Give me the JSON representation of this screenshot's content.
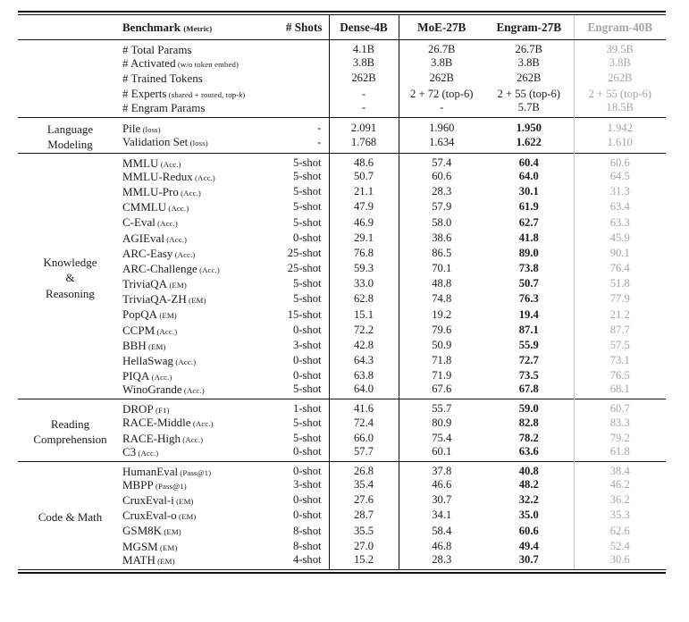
{
  "colors": {
    "text": "#1c1c1c",
    "muted": "#a5a5a5",
    "rule": "#111111",
    "rule_gray": "#c6c6c6"
  },
  "header": {
    "benchmark": "Benchmark",
    "benchmark_metric": "(Metric)",
    "shots": "# Shots",
    "models": [
      "Dense-4B",
      "MoE-27B",
      "Engram-27B",
      "Engram-40B"
    ]
  },
  "sections": [
    {
      "name": "model-config",
      "group_label": [],
      "engram27_bold": false,
      "rows": [
        {
          "label": "# Total Params",
          "metric": "",
          "shots": "",
          "values": [
            "4.1B",
            "26.7B",
            "26.7B",
            "39.5B"
          ]
        },
        {
          "label": "# Activated",
          "metric": "w/o token embed",
          "shots": "",
          "values": [
            "3.8B",
            "3.8B",
            "3.8B",
            "3.8B"
          ]
        },
        {
          "label": "# Trained Tokens",
          "metric": "",
          "shots": "",
          "values": [
            "262B",
            "262B",
            "262B",
            "262B"
          ]
        },
        {
          "label": "# Experts",
          "metric": "shared + routed, top-k",
          "shots": "",
          "values": [
            "-",
            "2 + 72 (top-6)",
            "2 + 55 (top-6)",
            "2 + 55 (top-6)"
          ]
        },
        {
          "label": "# Engram Params",
          "metric": "",
          "shots": "",
          "values": [
            "-",
            "-",
            "5.7B",
            "18.5B"
          ]
        }
      ]
    },
    {
      "name": "language-modeling",
      "group_label": [
        "Language",
        "Modeling"
      ],
      "engram27_bold": true,
      "rows": [
        {
          "label": "Pile",
          "metric": "loss",
          "shots": "-",
          "values": [
            "2.091",
            "1.960",
            "1.950",
            "1.942"
          ]
        },
        {
          "label": "Validation Set",
          "metric": "loss",
          "shots": "-",
          "values": [
            "1.768",
            "1.634",
            "1.622",
            "1.610"
          ]
        }
      ]
    },
    {
      "name": "knowledge-reasoning",
      "group_label": [
        "Knowledge",
        "&",
        "Reasoning"
      ],
      "engram27_bold": true,
      "rows": [
        {
          "label": "MMLU",
          "metric": "Acc.",
          "shots": "5-shot",
          "values": [
            "48.6",
            "57.4",
            "60.4",
            "60.6"
          ]
        },
        {
          "label": "MMLU-Redux",
          "metric": "Acc.",
          "shots": "5-shot",
          "values": [
            "50.7",
            "60.6",
            "64.0",
            "64.5"
          ]
        },
        {
          "label": "MMLU-Pro",
          "metric": "Acc.",
          "shots": "5-shot",
          "values": [
            "21.1",
            "28.3",
            "30.1",
            "31.3"
          ]
        },
        {
          "label": "CMMLU",
          "metric": "Acc.",
          "shots": "5-shot",
          "values": [
            "47.9",
            "57.9",
            "61.9",
            "63.4"
          ]
        },
        {
          "label": "C-Eval",
          "metric": "Acc.",
          "shots": "5-shot",
          "values": [
            "46.9",
            "58.0",
            "62.7",
            "63.3"
          ]
        },
        {
          "label": "AGIEval",
          "metric": "Acc.",
          "shots": "0-shot",
          "values": [
            "29.1",
            "38.6",
            "41.8",
            "45.9"
          ]
        },
        {
          "label": "ARC-Easy",
          "metric": "Acc.",
          "shots": "25-shot",
          "values": [
            "76.8",
            "86.5",
            "89.0",
            "90.1"
          ]
        },
        {
          "label": "ARC-Challenge",
          "metric": "Acc.",
          "shots": "25-shot",
          "values": [
            "59.3",
            "70.1",
            "73.8",
            "76.4"
          ]
        },
        {
          "label": "TriviaQA",
          "metric": "EM",
          "shots": "5-shot",
          "values": [
            "33.0",
            "48.8",
            "50.7",
            "51.8"
          ]
        },
        {
          "label": "TriviaQA-ZH",
          "metric": "EM",
          "shots": "5-shot",
          "values": [
            "62.8",
            "74.8",
            "76.3",
            "77.9"
          ]
        },
        {
          "label": "PopQA",
          "metric": "EM",
          "shots": "15-shot",
          "values": [
            "15.1",
            "19.2",
            "19.4",
            "21.2"
          ]
        },
        {
          "label": "CCPM",
          "metric": "Acc.",
          "shots": "0-shot",
          "values": [
            "72.2",
            "79.6",
            "87.1",
            "87.7"
          ]
        },
        {
          "label": "BBH",
          "metric": "EM",
          "shots": "3-shot",
          "values": [
            "42.8",
            "50.9",
            "55.9",
            "57.5"
          ]
        },
        {
          "label": "HellaSwag",
          "metric": "Acc.",
          "shots": "0-shot",
          "values": [
            "64.3",
            "71.8",
            "72.7",
            "73.1"
          ]
        },
        {
          "label": "PIQA",
          "metric": "Acc.",
          "shots": "0-shot",
          "values": [
            "63.8",
            "71.9",
            "73.5",
            "76.5"
          ]
        },
        {
          "label": "WinoGrande",
          "metric": "Acc.",
          "shots": "5-shot",
          "values": [
            "64.0",
            "67.6",
            "67.8",
            "68.1"
          ]
        }
      ]
    },
    {
      "name": "reading-comprehension",
      "group_label": [
        "Reading",
        "Comprehension"
      ],
      "engram27_bold": true,
      "rows": [
        {
          "label": "DROP",
          "metric": "F1",
          "shots": "1-shot",
          "values": [
            "41.6",
            "55.7",
            "59.0",
            "60.7"
          ]
        },
        {
          "label": "RACE-Middle",
          "metric": "Acc.",
          "shots": "5-shot",
          "values": [
            "72.4",
            "80.9",
            "82.8",
            "83.3"
          ]
        },
        {
          "label": "RACE-High",
          "metric": "Acc.",
          "shots": "5-shot",
          "values": [
            "66.0",
            "75.4",
            "78.2",
            "79.2"
          ]
        },
        {
          "label": "C3",
          "metric": "Acc.",
          "shots": "0-shot",
          "values": [
            "57.7",
            "60.1",
            "63.6",
            "61.8"
          ]
        }
      ]
    },
    {
      "name": "code-math",
      "group_label": [
        "Code & Math"
      ],
      "engram27_bold": true,
      "rows": [
        {
          "label": "HumanEval",
          "metric": "Pass@1",
          "shots": "0-shot",
          "values": [
            "26.8",
            "37.8",
            "40.8",
            "38.4"
          ]
        },
        {
          "label": "MBPP",
          "metric": "Pass@1",
          "shots": "3-shot",
          "values": [
            "35.4",
            "46.6",
            "48.2",
            "46.2"
          ]
        },
        {
          "label": "CruxEval-i",
          "metric": "EM",
          "shots": "0-shot",
          "values": [
            "27.6",
            "30.7",
            "32.2",
            "36.2"
          ]
        },
        {
          "label": "CruxEval-o",
          "metric": "EM",
          "shots": "0-shot",
          "values": [
            "28.7",
            "34.1",
            "35.0",
            "35.3"
          ]
        },
        {
          "label": "GSM8K",
          "metric": "EM",
          "shots": "8-shot",
          "values": [
            "35.5",
            "58.4",
            "60.6",
            "62.6"
          ]
        },
        {
          "label": "MGSM",
          "metric": "EM",
          "shots": "8-shot",
          "values": [
            "27.0",
            "46.8",
            "49.4",
            "52.4"
          ]
        },
        {
          "label": "MATH",
          "metric": "EM",
          "shots": "4-shot",
          "values": [
            "15.2",
            "28.3",
            "30.7",
            "30.6"
          ]
        }
      ]
    }
  ]
}
